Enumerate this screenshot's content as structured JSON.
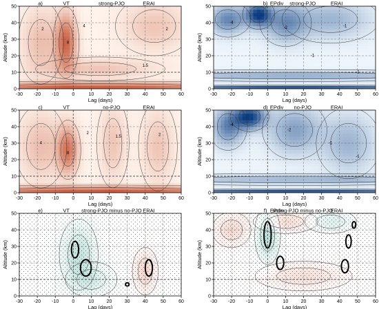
{
  "chart_data": [
    {
      "type": "heatmap",
      "panel": "a)",
      "header": [
        "a)",
        "VT",
        "strong-PJO",
        "ERAI"
      ],
      "xlabel": "Lag (days)",
      "ylabel": "Altitude (km)",
      "xlim": [
        -30,
        60
      ],
      "ylim": [
        0,
        50
      ],
      "xticks": [
        -30,
        -20,
        -10,
        0,
        10,
        20,
        30,
        40,
        50,
        60
      ],
      "yticks": [
        0,
        10,
        20,
        30,
        40,
        50
      ],
      "grid": "dashed",
      "color_scale": "reds",
      "contour_labels": [
        {
          "x": -3,
          "y": 28,
          "text": "8"
        },
        {
          "x": 6,
          "y": 38,
          "text": "4"
        },
        {
          "x": -17,
          "y": 36,
          "text": "2"
        },
        {
          "x": 40,
          "y": 14,
          "text": "1.5"
        },
        {
          "x": 52,
          "y": 36,
          "text": "2"
        }
      ],
      "features": [
        {
          "x": -4,
          "y": 28,
          "sx": 4,
          "sy": 12,
          "amp": 0.9
        },
        {
          "x": -18,
          "y": 28,
          "sx": 7,
          "sy": 14,
          "amp": 0.35
        },
        {
          "x": 15,
          "y": 12,
          "sx": 20,
          "sy": 4,
          "amp": 0.3
        },
        {
          "x": 15,
          "y": 1,
          "sx": 60,
          "sy": 2,
          "amp": 0.95
        },
        {
          "x": 45,
          "y": 38,
          "sx": 12,
          "sy": 10,
          "amp": 0.3
        }
      ]
    },
    {
      "type": "heatmap",
      "panel": "b)",
      "header": [
        "b)",
        "EPdiv",
        "strong-PJO",
        "ERAI"
      ],
      "xlabel": "Lag (days)",
      "ylabel": "Altitude (km)",
      "xlim": [
        -30,
        60
      ],
      "ylim": [
        0,
        50
      ],
      "xticks": [
        -30,
        -20,
        -10,
        0,
        10,
        20,
        30,
        40,
        50,
        60
      ],
      "yticks": [
        0,
        10,
        20,
        30,
        40,
        50
      ],
      "grid": "dashed",
      "color_scale": "blues",
      "contour_labels": [
        {
          "x": -20,
          "y": 40,
          "text": "-4"
        },
        {
          "x": 10,
          "y": 37,
          "text": "-2"
        },
        {
          "x": 43,
          "y": 38,
          "text": "-1"
        },
        {
          "x": 25,
          "y": 20,
          "text": "-1"
        },
        {
          "x": 50,
          "y": 10,
          "text": "-1"
        }
      ],
      "features": [
        {
          "x": -5,
          "y": 45,
          "sx": 5,
          "sy": 5,
          "amp": 0.95
        },
        {
          "x": -22,
          "y": 42,
          "sx": 7,
          "sy": 6,
          "amp": 0.6
        },
        {
          "x": 10,
          "y": 40,
          "sx": 8,
          "sy": 8,
          "amp": 0.5
        },
        {
          "x": 35,
          "y": 42,
          "sx": 15,
          "sy": 8,
          "amp": 0.35
        },
        {
          "x": 15,
          "y": 8,
          "sx": 60,
          "sy": 2,
          "amp": 0.4
        },
        {
          "x": 15,
          "y": 0.5,
          "sx": 60,
          "sy": 1,
          "amp": 0.95
        }
      ]
    },
    {
      "type": "heatmap",
      "panel": "c)",
      "header": [
        "c)",
        "VT",
        "no-PJO",
        "ERAI"
      ],
      "xlabel": "Lag (days)",
      "ylabel": "Altitude (km)",
      "xlim": [
        -30,
        60
      ],
      "ylim": [
        0,
        50
      ],
      "xticks": [
        -30,
        -20,
        -10,
        0,
        10,
        20,
        30,
        40,
        50,
        60
      ],
      "yticks": [
        0,
        10,
        20,
        30,
        40,
        50
      ],
      "grid": "dashed",
      "color_scale": "reds",
      "contour_labels": [
        {
          "x": -3,
          "y": 24,
          "text": "8"
        },
        {
          "x": 8,
          "y": 36,
          "text": "2"
        },
        {
          "x": 25,
          "y": 34,
          "text": "1.5"
        },
        {
          "x": 48,
          "y": 35,
          "text": "2"
        },
        {
          "x": -18,
          "y": 30,
          "text": "4"
        }
      ],
      "features": [
        {
          "x": -3,
          "y": 26,
          "sx": 4,
          "sy": 10,
          "amp": 0.8
        },
        {
          "x": -18,
          "y": 28,
          "sx": 8,
          "sy": 14,
          "amp": 0.35
        },
        {
          "x": 22,
          "y": 30,
          "sx": 5,
          "sy": 15,
          "amp": 0.3
        },
        {
          "x": 47,
          "y": 28,
          "sx": 6,
          "sy": 15,
          "amp": 0.3
        },
        {
          "x": 15,
          "y": 1,
          "sx": 60,
          "sy": 2,
          "amp": 0.95
        }
      ]
    },
    {
      "type": "heatmap",
      "panel": "d)",
      "header": [
        "d)",
        "EPdiv",
        "no-PJO",
        "ERAI"
      ],
      "xlabel": "Lag (days)",
      "ylabel": "Altitude (km)",
      "xlim": [
        -30,
        60
      ],
      "ylim": [
        0,
        50
      ],
      "xticks": [
        -30,
        -20,
        -10,
        0,
        10,
        20,
        30,
        40,
        50,
        60
      ],
      "yticks": [
        0,
        10,
        20,
        30,
        40,
        50
      ],
      "grid": "dashed",
      "color_scale": "blues",
      "contour_labels": [
        {
          "x": -20,
          "y": 41,
          "text": "-4"
        },
        {
          "x": 12,
          "y": 38,
          "text": "-2"
        },
        {
          "x": 35,
          "y": 30,
          "text": "-1"
        },
        {
          "x": 50,
          "y": 22,
          "text": "-1"
        }
      ],
      "features": [
        {
          "x": -10,
          "y": 46,
          "sx": 6,
          "sy": 5,
          "amp": 0.95
        },
        {
          "x": -22,
          "y": 40,
          "sx": 6,
          "sy": 8,
          "amp": 0.6
        },
        {
          "x": 15,
          "y": 38,
          "sx": 10,
          "sy": 10,
          "amp": 0.45
        },
        {
          "x": 45,
          "y": 30,
          "sx": 10,
          "sy": 12,
          "amp": 0.35
        },
        {
          "x": 15,
          "y": 8,
          "sx": 60,
          "sy": 2,
          "amp": 0.35
        },
        {
          "x": 15,
          "y": 0.5,
          "sx": 60,
          "sy": 1,
          "amp": 0.95
        }
      ]
    },
    {
      "type": "heatmap",
      "panel": "e)",
      "header": [
        "e)",
        "VT",
        "strong-PJO minus no-PJO",
        "ERAI"
      ],
      "xlabel": "Lag (days)",
      "ylabel": "Altitude (km)",
      "xlim": [
        -30,
        60
      ],
      "ylim": [
        0,
        50
      ],
      "xticks": [
        -30,
        -20,
        -10,
        0,
        10,
        20,
        30,
        40,
        50,
        60
      ],
      "yticks": [
        0,
        10,
        20,
        30,
        40,
        50
      ],
      "grid": "dashed",
      "color_scale": "diverging",
      "stippled": true,
      "significant_regions": [
        {
          "x": 1,
          "y": 28,
          "rx": 2,
          "ry": 5
        },
        {
          "x": 7,
          "y": 17,
          "rx": 3,
          "ry": 5
        },
        {
          "x": 42,
          "y": 17,
          "rx": 2,
          "ry": 5
        },
        {
          "x": 30,
          "y": 7,
          "rx": 1,
          "ry": 1
        }
      ],
      "contour_labels": [],
      "features": [
        {
          "x": 3,
          "y": 25,
          "sx": 6,
          "sy": 12,
          "amp": 0.5
        },
        {
          "x": 40,
          "y": 15,
          "sx": 4,
          "sy": 8,
          "amp": -0.4
        },
        {
          "x": 10,
          "y": 10,
          "sx": 8,
          "sy": 6,
          "amp": 0.3
        }
      ]
    },
    {
      "type": "heatmap",
      "panel": "f)",
      "header": [
        "f)",
        "EPdiv",
        "strong-PJO minus no-PJO",
        "ERAI"
      ],
      "xlabel": "Lag (days)",
      "ylabel": "Altitude (km)",
      "xlim": [
        -30,
        60
      ],
      "ylim": [
        0,
        50
      ],
      "xticks": [
        -30,
        -20,
        -10,
        0,
        10,
        20,
        30,
        40,
        50,
        60
      ],
      "yticks": [
        0,
        10,
        20,
        30,
        40,
        50
      ],
      "grid": "dashed",
      "color_scale": "diverging",
      "stippled": true,
      "significant_regions": [
        {
          "x": 0,
          "y": 37,
          "rx": 2,
          "ry": 8
        },
        {
          "x": 7,
          "y": 20,
          "rx": 2,
          "ry": 4
        },
        {
          "x": 43,
          "y": 18,
          "rx": 2,
          "ry": 4
        },
        {
          "x": 45,
          "y": 33,
          "rx": 1.5,
          "ry": 4
        },
        {
          "x": 48,
          "y": 43,
          "rx": 1,
          "ry": 2
        }
      ],
      "contour_labels": [],
      "features": [
        {
          "x": 0,
          "y": 37,
          "sx": 4,
          "sy": 10,
          "amp": 0.6
        },
        {
          "x": -20,
          "y": 40,
          "sx": 6,
          "sy": 6,
          "amp": -0.35
        },
        {
          "x": 10,
          "y": 45,
          "sx": 10,
          "sy": 4,
          "amp": -0.35
        },
        {
          "x": 35,
          "y": 45,
          "sx": 8,
          "sy": 4,
          "amp": 0.3
        },
        {
          "x": 20,
          "y": 12,
          "sx": 15,
          "sy": 5,
          "amp": -0.3
        }
      ]
    }
  ]
}
